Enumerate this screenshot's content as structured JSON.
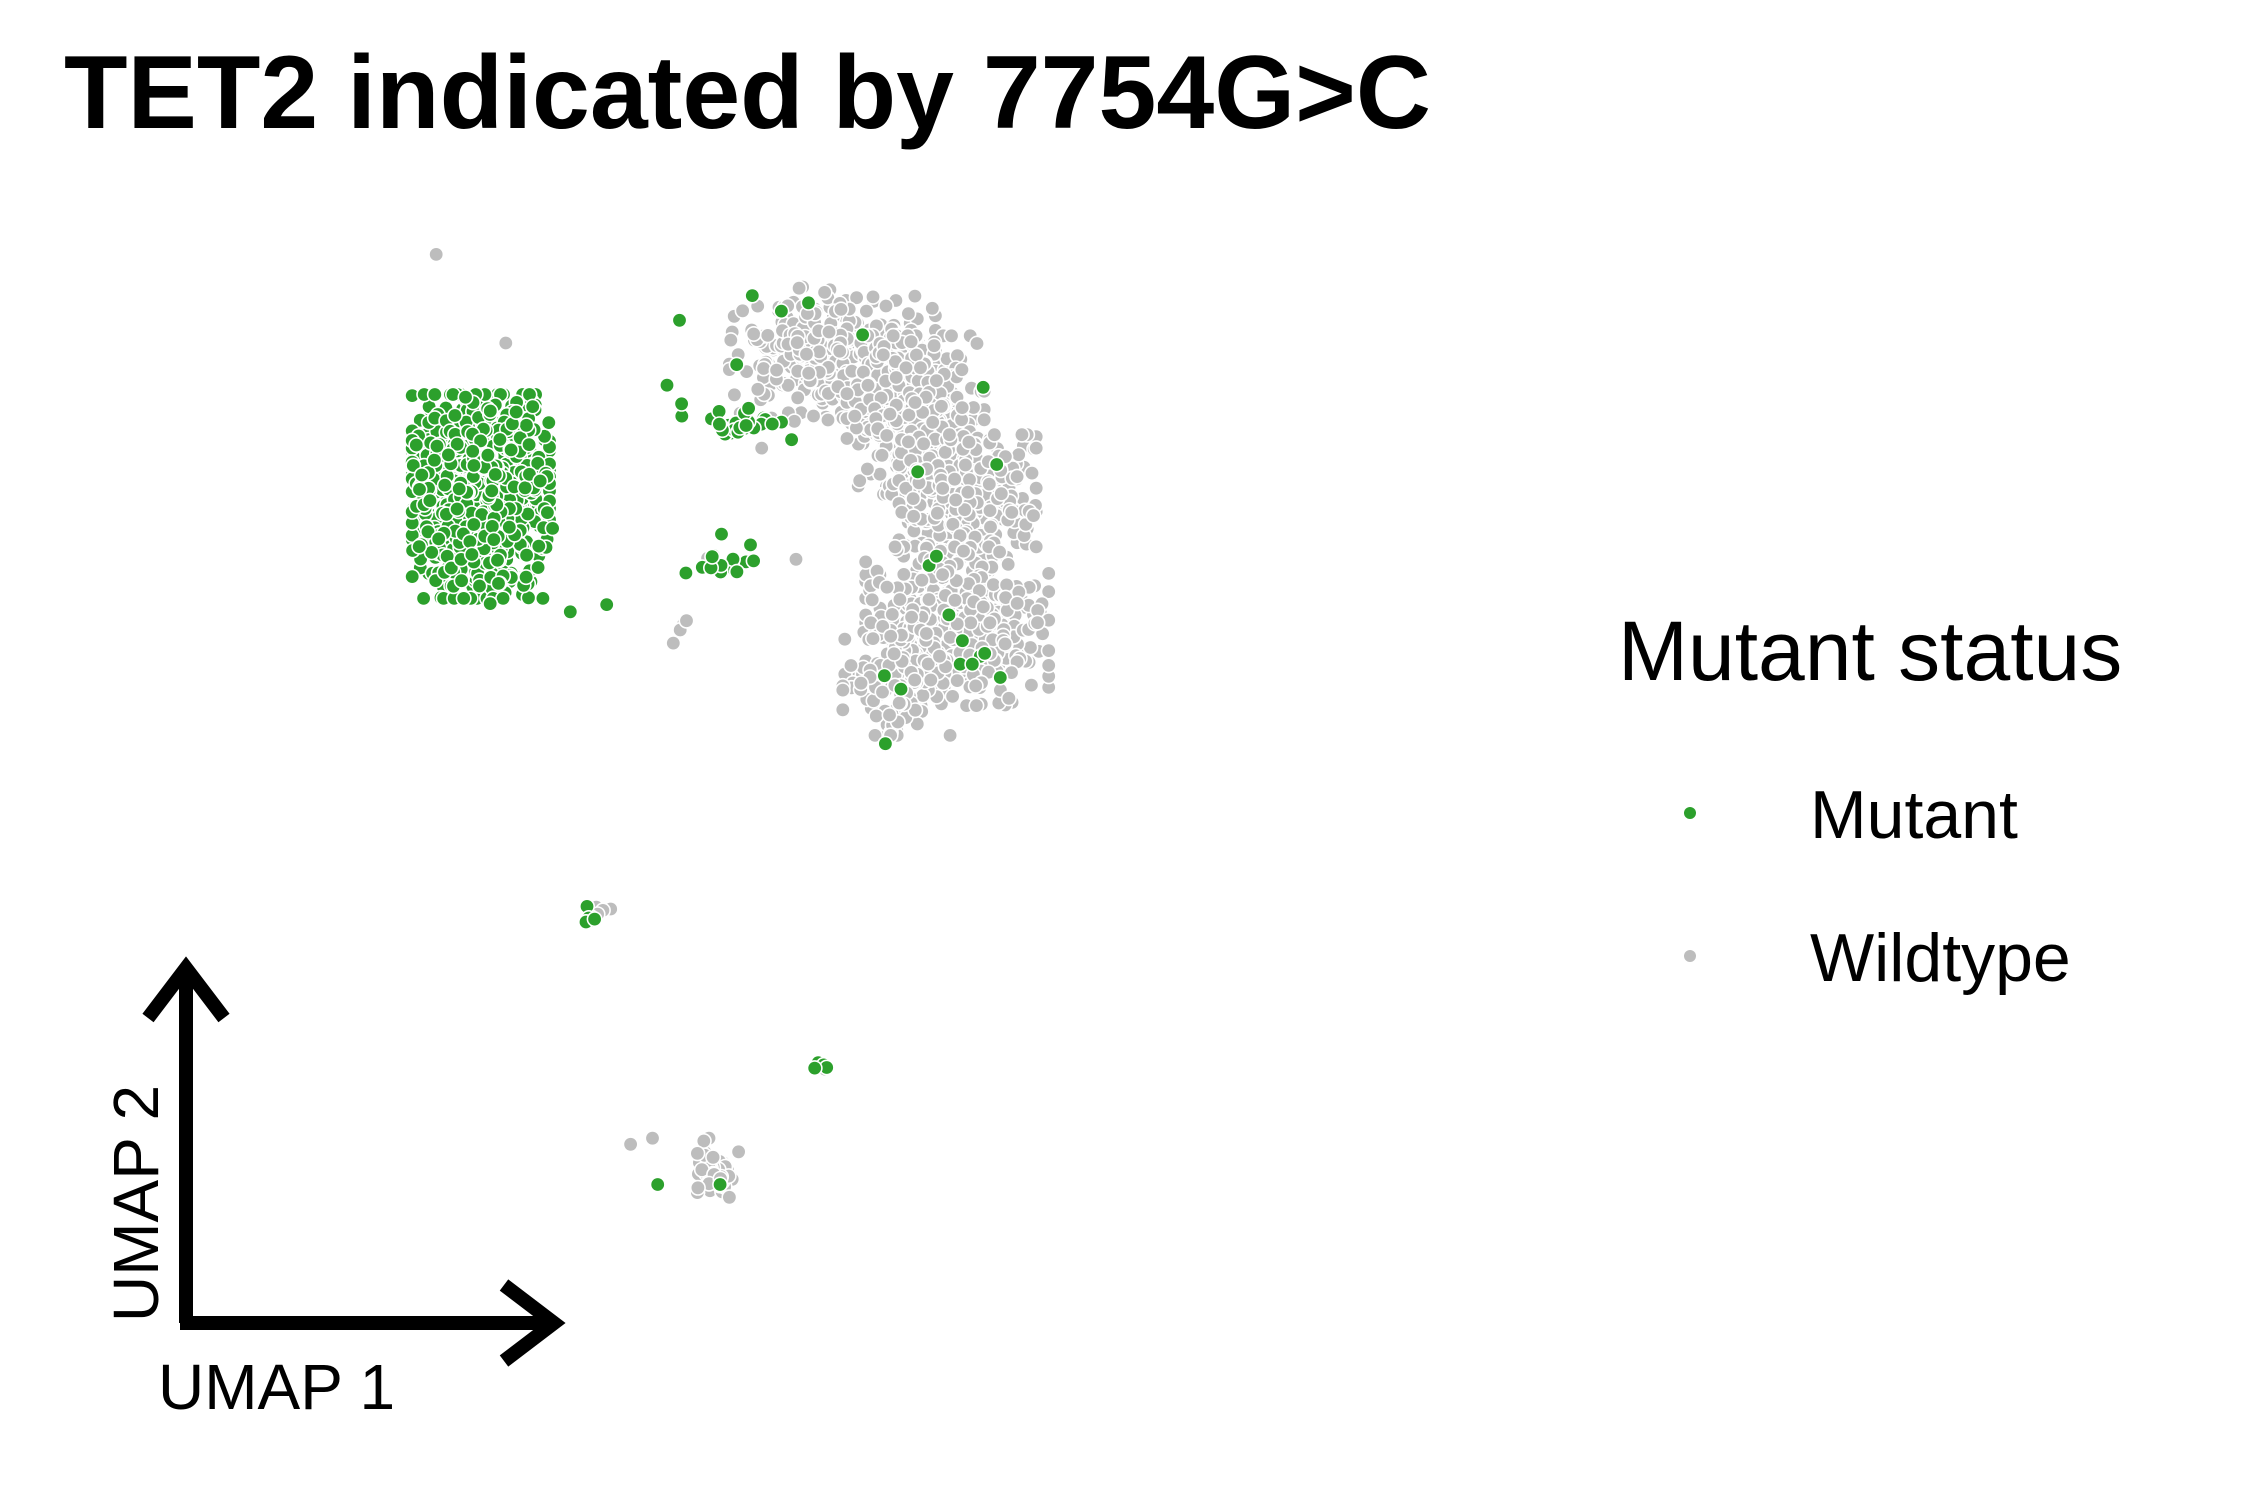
{
  "chart_data": {
    "type": "scatter",
    "title": "TET2 indicated by 7754G>C",
    "xlabel": "UMAP 1",
    "ylabel": "UMAP 2",
    "xlim": [
      0,
      100
    ],
    "ylim": [
      0,
      100
    ],
    "grid": false,
    "legend": {
      "title": "Mutant status",
      "placement": "right",
      "entries": [
        {
          "label": "Mutant",
          "color": "#2ca02c"
        },
        {
          "label": "Wildtype",
          "color": "#bdbdbd"
        }
      ]
    },
    "point_edge_color": "#ffffff",
    "series": [
      {
        "name": "Mutant",
        "color": "#2ca02c",
        "clusters": [
          {
            "center": [
              9.7,
              75.1
            ],
            "spread": [
              6.0,
              9.0
            ],
            "n": 1200
          },
          {
            "center": [
              34.3,
              82.3
            ],
            "spread": [
              4.8,
              1.6
            ],
            "n": 28
          },
          {
            "center": [
              33.0,
              69.3
            ],
            "spread": [
              4.0,
              3.0
            ],
            "n": 14
          },
          {
            "center": [
              57.0,
              58.6
            ],
            "spread": [
              3.0,
              2.5
            ],
            "n": 5
          },
          {
            "center": [
              20.5,
              34.4
            ],
            "spread": [
              1.2,
              0.9
            ],
            "n": 6
          },
          {
            "center": [
              42.5,
              19.8
            ],
            "spread": [
              0.8,
              0.5
            ],
            "n": 4
          }
        ],
        "points": [
          [
            13.1,
            83.3
          ],
          [
            15.4,
            76.6
          ],
          [
            16.6,
            72.0
          ],
          [
            15.2,
            68.2
          ],
          [
            4.8,
            74.7
          ],
          [
            10.6,
            64.7
          ],
          [
            21.8,
            64.6
          ],
          [
            18.3,
            63.9
          ],
          [
            28.8,
            92.2
          ],
          [
            27.6,
            85.9
          ],
          [
            29.0,
            84.1
          ],
          [
            56.0,
            61.1
          ],
          [
            51.7,
            77.5
          ],
          [
            54.7,
            63.6
          ],
          [
            48.5,
            57.7
          ],
          [
            48.6,
            51.1
          ],
          [
            50.1,
            56.4
          ],
          [
            52.8,
            68.4
          ],
          [
            41.2,
            93.9
          ],
          [
            38.6,
            93.1
          ],
          [
            35.8,
            94.6
          ],
          [
            26.7,
            8.3
          ],
          [
            32.7,
            8.3
          ],
          [
            41.8,
            19.6
          ],
          [
            34.3,
            87.9
          ],
          [
            59.3,
            78.2
          ],
          [
            58.0,
            85.7
          ],
          [
            53.5,
            69.3
          ],
          [
            46.4,
            90.8
          ]
        ]
      },
      {
        "name": "Wildtype",
        "color": "#bdbdbd",
        "clusters": [
          {
            "center": [
              43.5,
              89.0
            ],
            "spread": [
              9.0,
              6.0
            ],
            "n": 350
          },
          {
            "center": [
              51.5,
              83.0
            ],
            "spread": [
              6.0,
              7.0
            ],
            "n": 450
          },
          {
            "center": [
              56.5,
              74.5
            ],
            "spread": [
              6.0,
              6.0
            ],
            "n": 350
          },
          {
            "center": [
              55.5,
              62.5
            ],
            "spread": [
              8.0,
              7.0
            ],
            "n": 450
          },
          {
            "center": [
              50.0,
              58.5
            ],
            "spread": [
              5.0,
              6.0
            ],
            "n": 150
          },
          {
            "center": [
              32.5,
              9.5
            ],
            "spread": [
              1.8,
              3.0
            ],
            "n": 55
          },
          {
            "center": [
              21.5,
              35.0
            ],
            "spread": [
              1.2,
              0.8
            ],
            "n": 4
          },
          {
            "center": [
              28.7,
              61.8
            ],
            "spread": [
              1.0,
              2.0
            ],
            "n": 4
          }
        ],
        "points": [
          [
            5.4,
            98.6
          ],
          [
            10.1,
            77.6
          ],
          [
            8.3,
            73.3
          ],
          [
            11.6,
            69.2
          ],
          [
            12.1,
            90.0
          ],
          [
            31.5,
            69.1
          ],
          [
            36.7,
            79.8
          ],
          [
            40.0,
            69.0
          ],
          [
            39.2,
            93.6
          ],
          [
            24.1,
            12.2
          ],
          [
            26.2,
            12.8
          ],
          [
            42.8,
            19.5
          ],
          [
            44.2,
            89.2
          ]
        ]
      }
    ]
  }
}
